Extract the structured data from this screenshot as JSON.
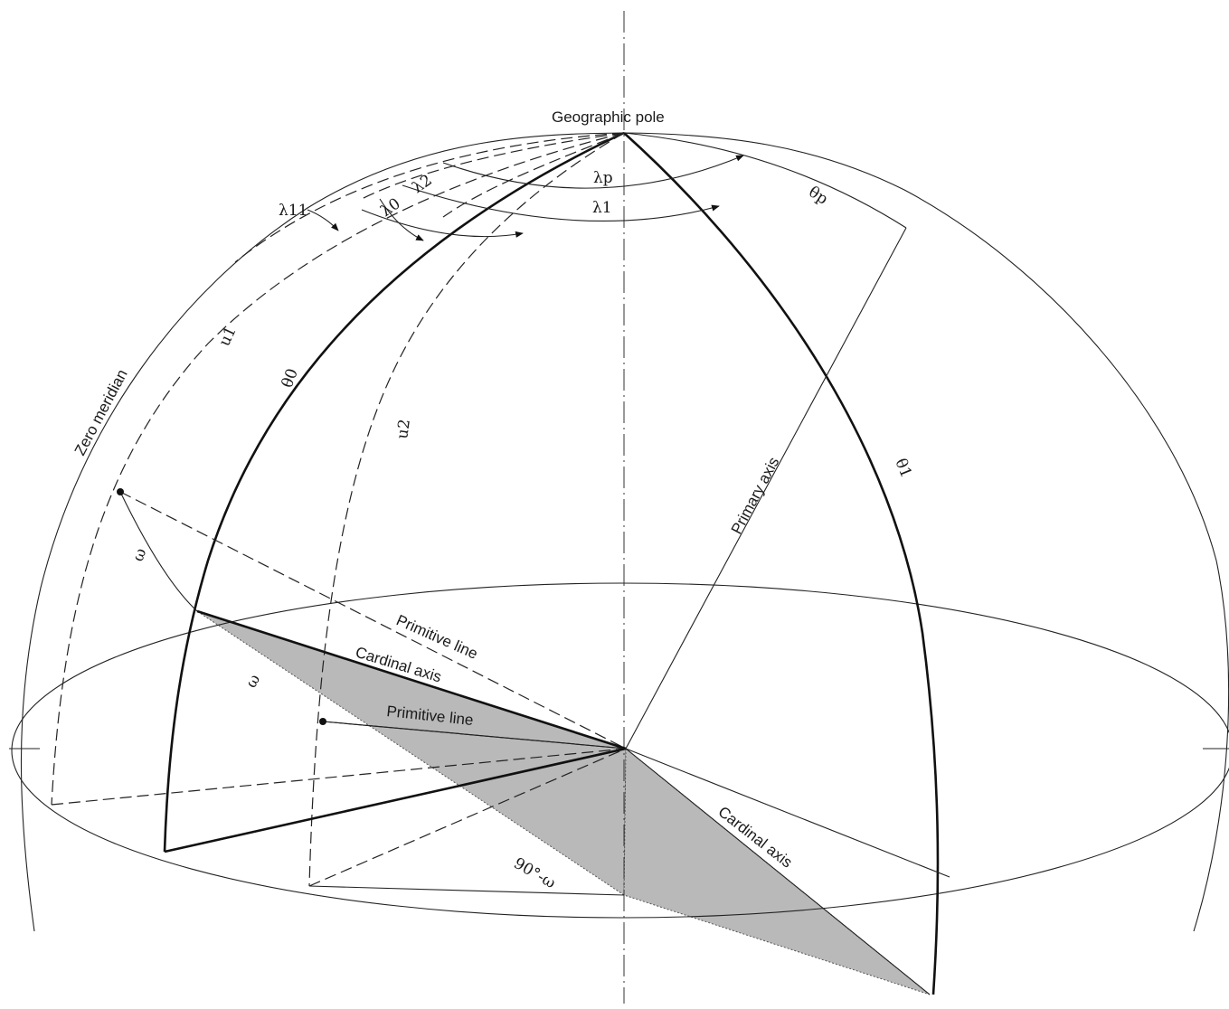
{
  "labels": {
    "geographic_pole": "Geographic pole",
    "zero_meridian": "Zero meridian",
    "primary_axis": "Primary axis",
    "primitive_line_upper": "Primitive line",
    "primitive_line_lower": "Primitive line",
    "cardinal_axis_upper": "Cardinal axis",
    "cardinal_axis_lower": "Cardinal axis",
    "lambda_p": "λp",
    "lambda_1": "λ1",
    "lambda_2": "λ2",
    "lambda_0": "λ0",
    "lambda_11": "λ11",
    "theta_p": "θp",
    "theta_0": "θ0",
    "theta_1": "θ1",
    "u_1": "u1",
    "u_2": "u2",
    "omega_upper": "ω",
    "omega_lower": "ω",
    "ninety_minus_omega": "90°-ω"
  },
  "colors": {
    "ink": "#1a1a1a",
    "shaded_plane": "#b9b9b9",
    "background": "#ffffff"
  }
}
